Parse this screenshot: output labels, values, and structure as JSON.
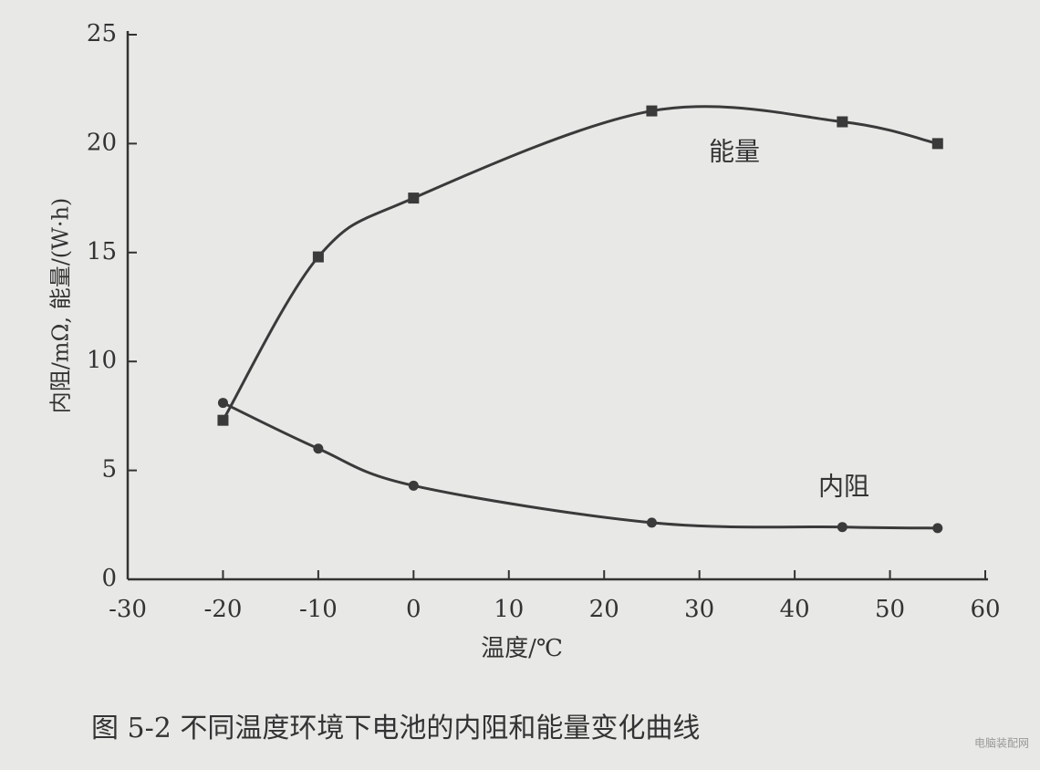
{
  "chart_data": {
    "type": "line",
    "y_label": "内阻/mΩ, 能量/(W·h)",
    "x_label": "温度/℃",
    "caption": "图 5-2   不同温度环境下电池的内阻和能量变化曲线",
    "watermark": "电脑装配网",
    "x": [
      -20,
      -10,
      0,
      25,
      45,
      55
    ],
    "series": [
      {
        "name": "能量",
        "color": "#3a3a3a",
        "marker": "square",
        "values": [
          7.3,
          14.8,
          17.5,
          21.5,
          21,
          20
        ]
      },
      {
        "name": "内阻",
        "color": "#3a3a3a",
        "marker": "diamond",
        "values": [
          8.1,
          6.0,
          4.3,
          2.6,
          2.4,
          2.35
        ]
      }
    ],
    "xlim": [
      -30,
      60
    ],
    "xticks": [
      -30,
      -20,
      -10,
      0,
      10,
      20,
      30,
      40,
      50,
      60
    ],
    "ylim": [
      0,
      25
    ],
    "yticks": [
      0,
      5,
      10,
      15,
      20,
      25
    ]
  }
}
